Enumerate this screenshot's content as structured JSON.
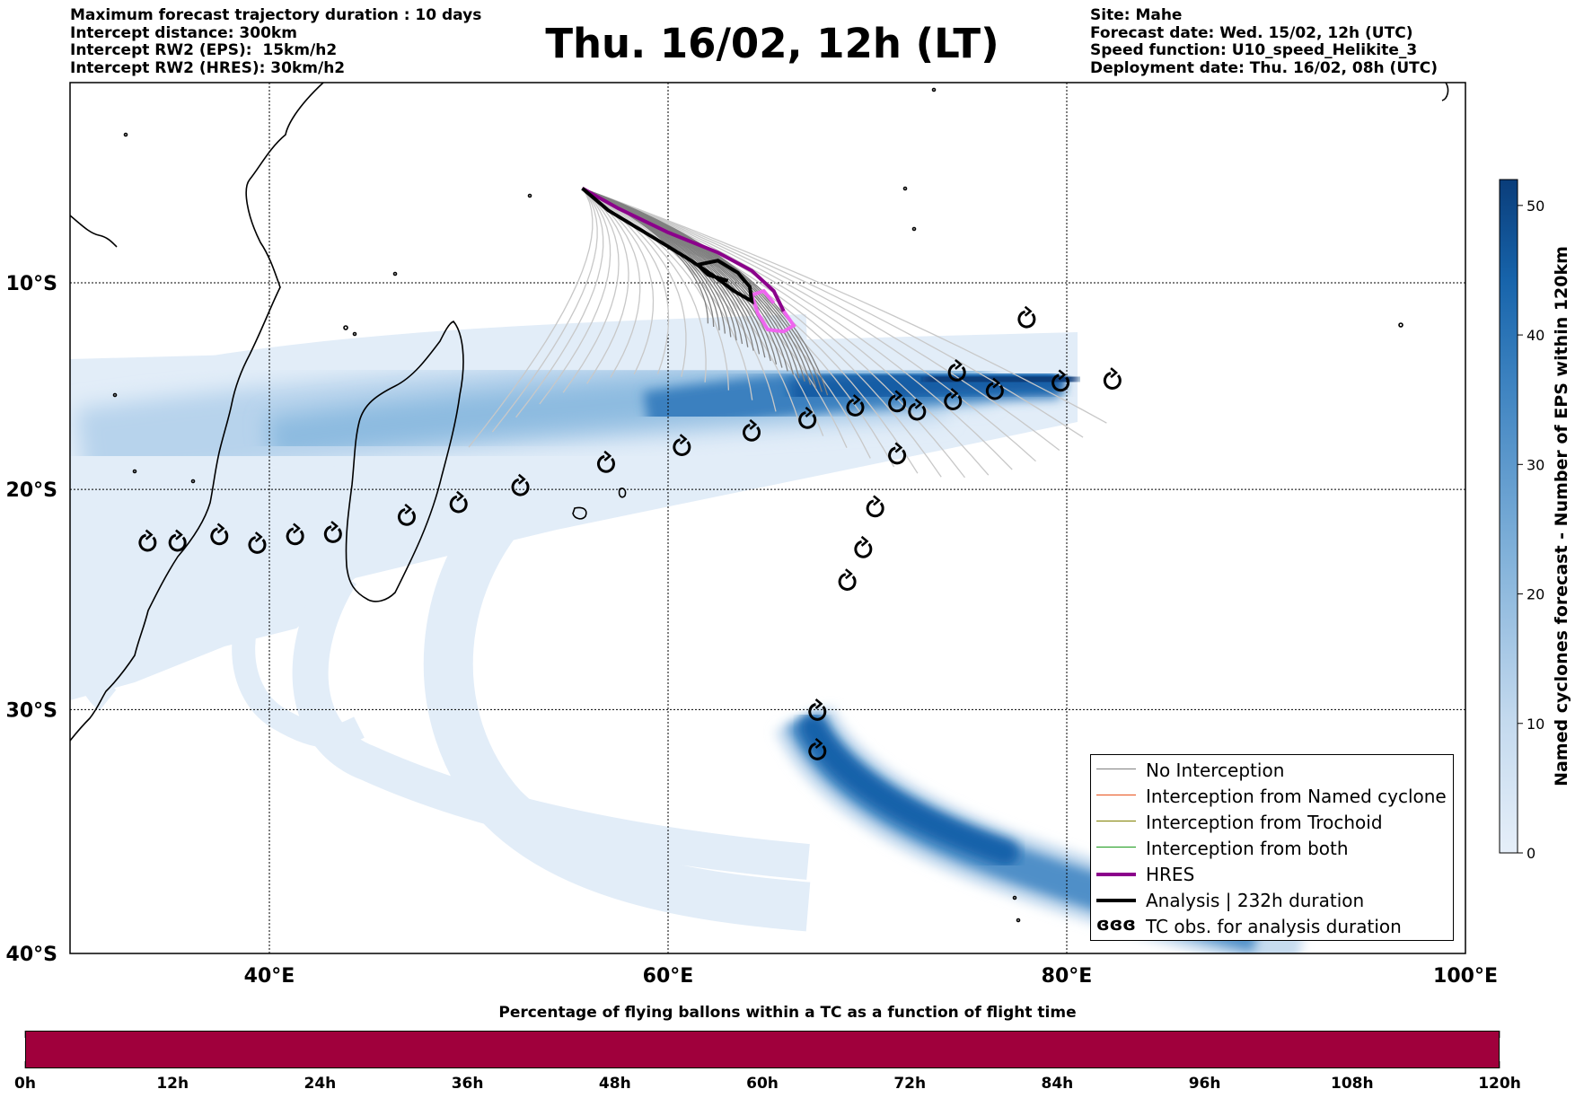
{
  "title": "Thu. 16/02, 12h (LT)",
  "info_left": [
    "Maximum forecast trajectory duration : 10 days",
    "Intercept distance: 300km",
    "Intercept RW2 (EPS):  15km/h2",
    "Intercept RW2 (HRES): 30km/h2"
  ],
  "info_right": [
    "Site: Mahe",
    "Forecast date: Wed. 15/02, 12h (UTC)",
    "Speed function: U10_speed_Helikite_3",
    "Deployment date: Thu. 16/02, 08h (UTC)"
  ],
  "map": {
    "lon_range": [
      30,
      100
    ],
    "lat_range": [
      -40,
      0
    ],
    "lon_ticks": [
      "40°E",
      "60°E",
      "80°E",
      "100°E"
    ],
    "lat_ticks": [
      "10°S",
      "20°S",
      "30°S",
      "40°S"
    ],
    "grid": true
  },
  "colorbar": {
    "label": "Named cyclones forecast - Number of EPS within 120km",
    "ticks": [
      "0",
      "10",
      "20",
      "30",
      "40",
      "50"
    ],
    "range": [
      0,
      52
    ],
    "colors": [
      "#e4eef8",
      "#0a3d7a"
    ]
  },
  "legend": {
    "items": [
      {
        "label": "No Interception",
        "color": "#808080"
      },
      {
        "label": "Interception from Named cyclone",
        "color": "#e8501a"
      },
      {
        "label": "Interception from Trochoid",
        "color": "#808000"
      },
      {
        "label": "Interception from both",
        "color": "#1a9a1a"
      },
      {
        "label": "HRES",
        "color": "#8b008b"
      },
      {
        "label": "Analysis | 232h duration",
        "color": "#000000"
      },
      {
        "label": "TC obs. for analysis duration",
        "color": "#000000",
        "symbol": "ɞɞɞ"
      }
    ]
  },
  "percentage_bar": {
    "title": "Percentage of flying ballons within a TC as a function of flight time",
    "ticks": [
      "0h",
      "12h",
      "24h",
      "36h",
      "48h",
      "60h",
      "72h",
      "84h",
      "96h",
      "108h",
      "120h"
    ],
    "color": "#a0003c"
  },
  "tc_obs": [
    [
      78.0,
      -11.8
    ],
    [
      82.3,
      -14.8
    ],
    [
      79.7,
      -14.9
    ],
    [
      76.4,
      -15.3
    ],
    [
      74.5,
      -14.4
    ],
    [
      74.3,
      -15.8
    ],
    [
      72.5,
      -16.3
    ],
    [
      71.5,
      -15.9
    ],
    [
      69.4,
      -16.1
    ],
    [
      67.0,
      -16.7
    ],
    [
      64.2,
      -17.3
    ],
    [
      60.7,
      -18.0
    ],
    [
      56.9,
      -18.8
    ],
    [
      52.6,
      -19.9
    ],
    [
      49.5,
      -20.7
    ],
    [
      46.9,
      -21.3
    ],
    [
      43.2,
      -22.1
    ],
    [
      41.3,
      -22.2
    ],
    [
      39.4,
      -22.6
    ],
    [
      37.5,
      -22.2
    ],
    [
      35.4,
      -22.5
    ],
    [
      33.9,
      -22.5
    ],
    [
      71.5,
      -18.4
    ],
    [
      70.4,
      -20.9
    ],
    [
      69.8,
      -22.8
    ],
    [
      69.0,
      -24.3
    ],
    [
      67.5,
      -30.1
    ],
    [
      67.5,
      -31.8
    ]
  ],
  "hres_track": [
    [
      55.7,
      -5.3
    ],
    [
      57.5,
      -6.3
    ],
    [
      60.0,
      -7.5
    ],
    [
      62.5,
      -8.5
    ],
    [
      64.2,
      -9.4
    ],
    [
      65.3,
      -10.4
    ],
    [
      65.8,
      -11.4
    ],
    [
      66.3,
      -12.1
    ],
    [
      65.8,
      -12.4
    ],
    [
      65.0,
      -12.3
    ],
    [
      64.5,
      -11.5
    ],
    [
      64.2,
      -10.6
    ],
    [
      64.8,
      -10.4
    ],
    [
      65.3,
      -11.0
    ]
  ],
  "analysis_track": [
    [
      55.7,
      -5.3
    ],
    [
      57.0,
      -6.4
    ],
    [
      59.0,
      -7.6
    ],
    [
      61.0,
      -8.8
    ],
    [
      62.5,
      -9.8
    ],
    [
      63.3,
      -10.4
    ],
    [
      64.2,
      -10.9
    ],
    [
      64.1,
      -10.2
    ],
    [
      63.5,
      -9.5
    ],
    [
      62.5,
      -8.9
    ],
    [
      61.5,
      -9.1
    ],
    [
      62.0,
      -9.6
    ],
    [
      63.0,
      -9.9
    ]
  ]
}
